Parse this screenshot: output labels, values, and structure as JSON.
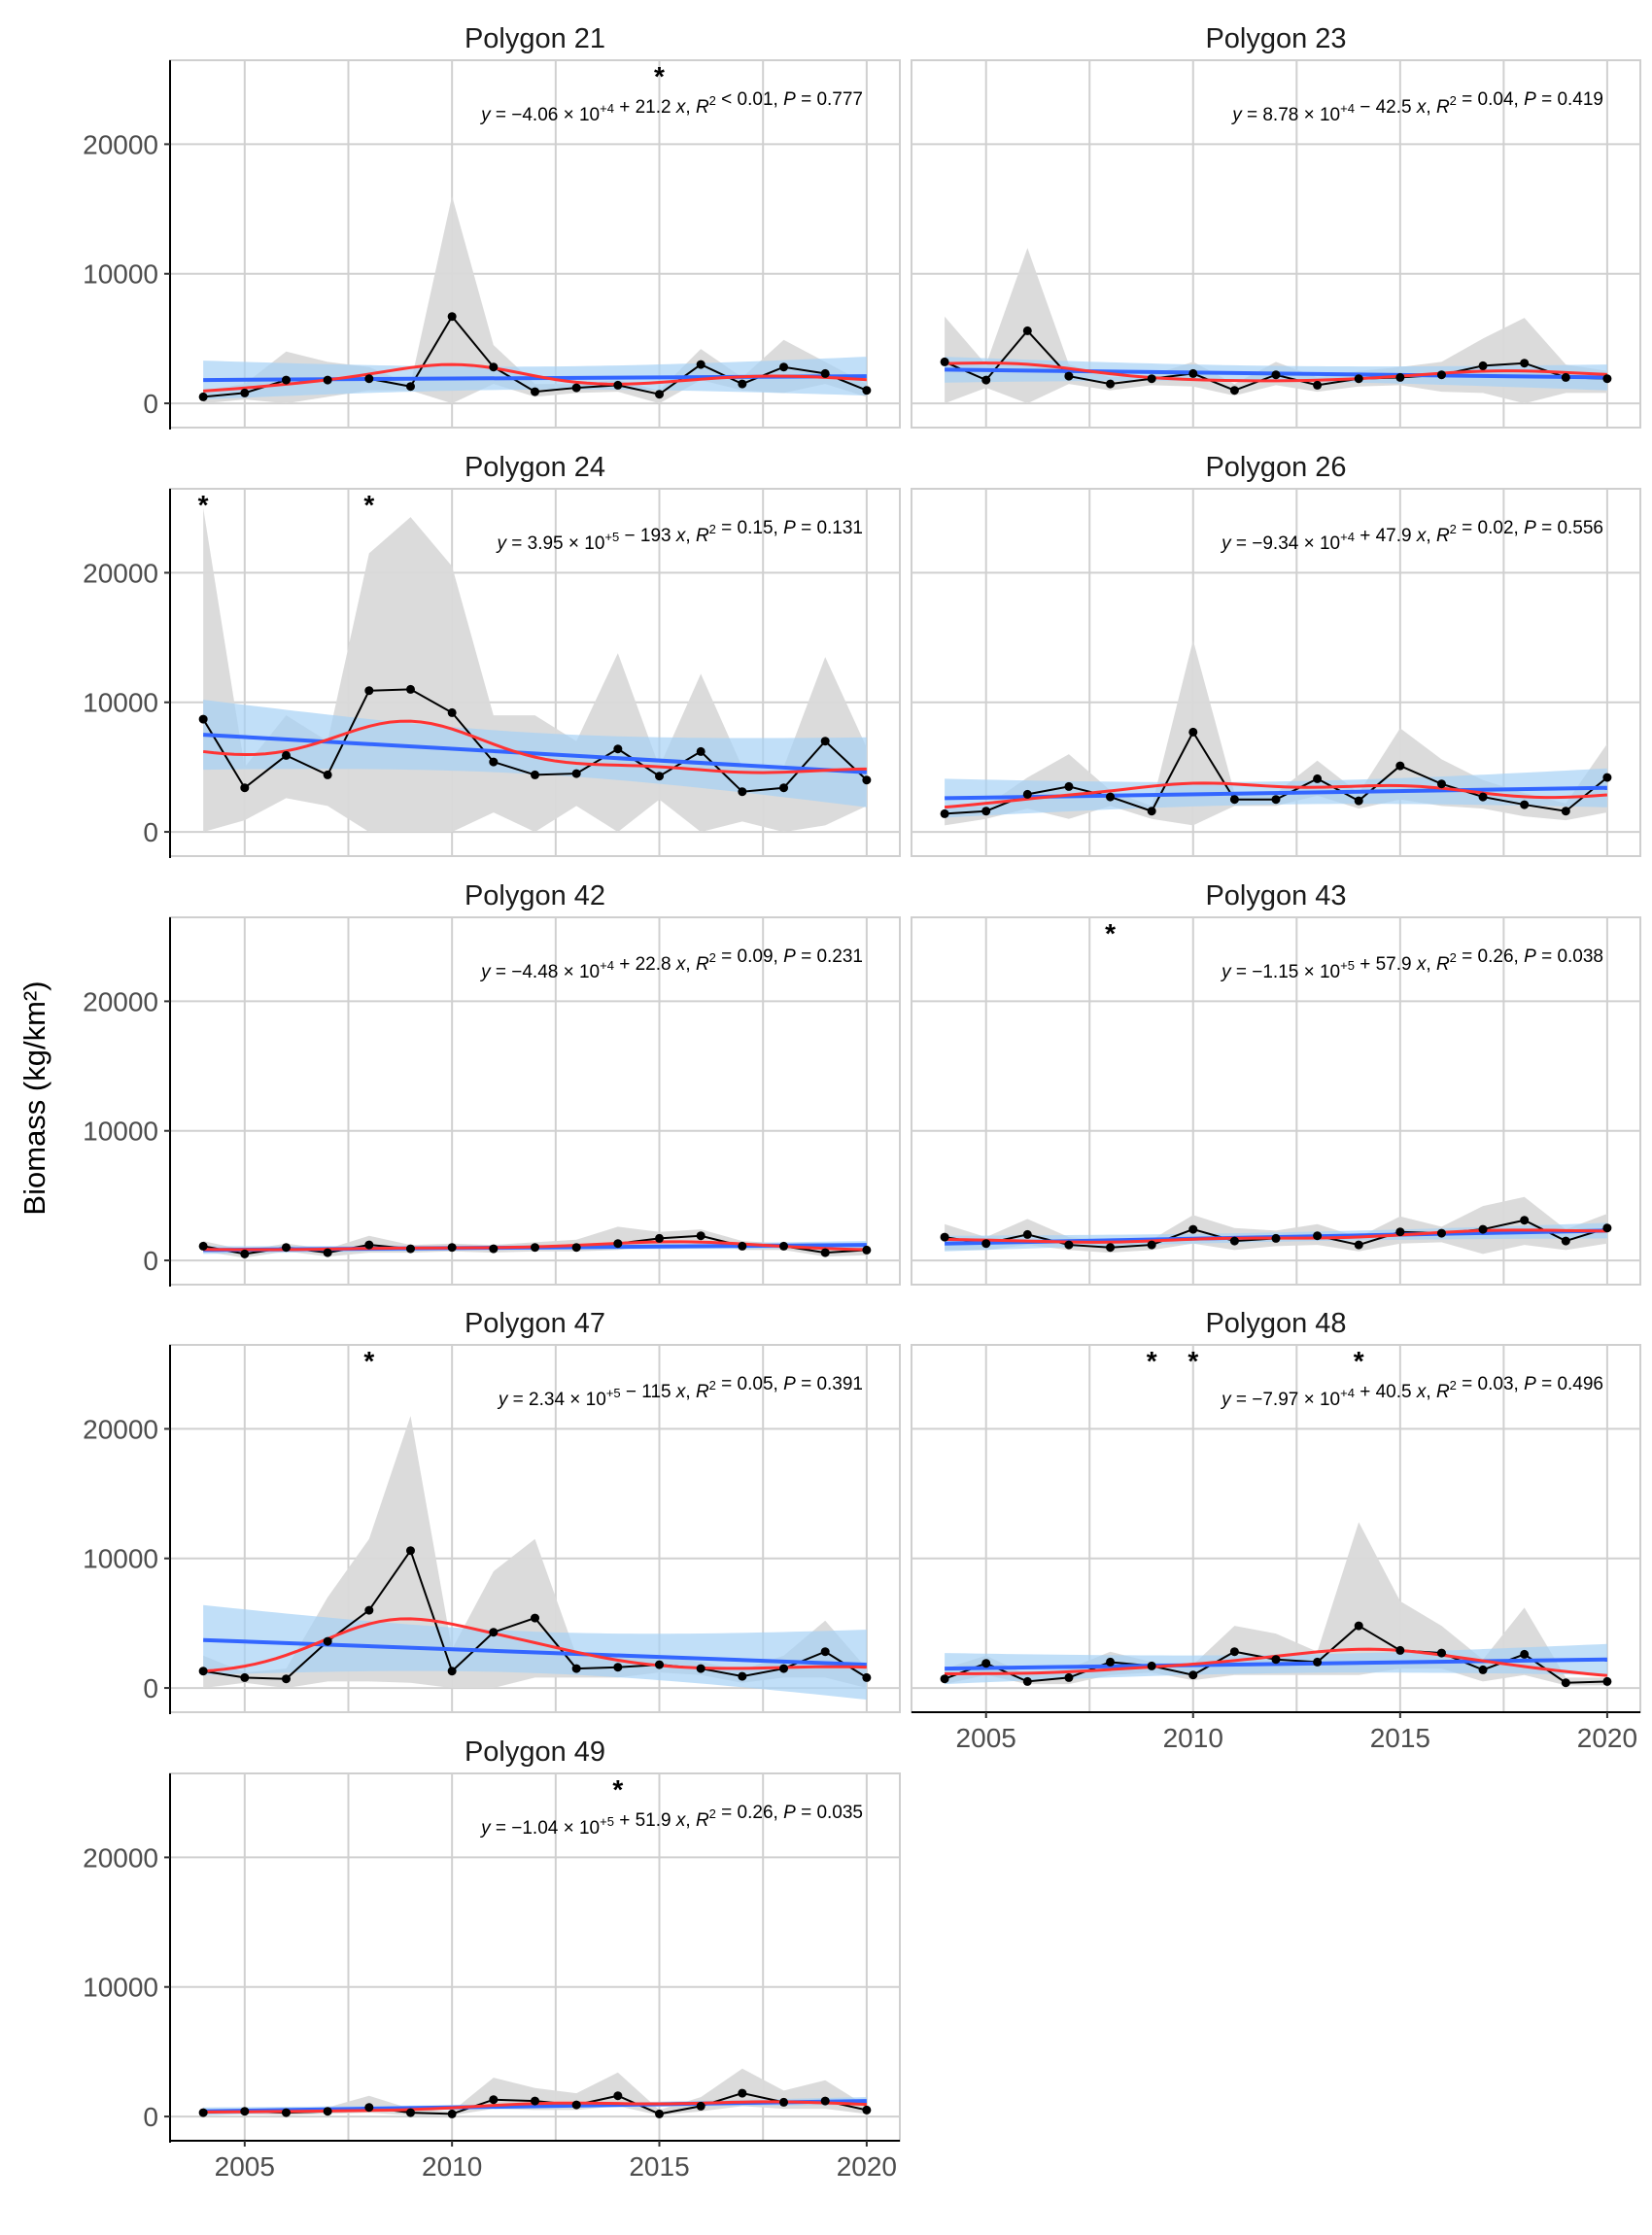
{
  "figure": {
    "y_axis_label": "Biomass (kg/km²)",
    "colors": {
      "observed": "#000000",
      "band": "#d9d9d9",
      "fit_line": "#3366ff",
      "fit_ci": "#a6d2f5",
      "smooth": "#ff3333",
      "grid": "#d0d0d0"
    }
  },
  "chart_data": [
    {
      "type": "line",
      "title": "Polygon 21",
      "x": [
        2004,
        2005,
        2006,
        2007,
        2008,
        2009,
        2010,
        2011,
        2012,
        2013,
        2014,
        2015,
        2016,
        2017,
        2018,
        2019,
        2020
      ],
      "values": [
        500,
        800,
        1800,
        1800,
        1900,
        1300,
        6700,
        2800,
        900,
        1200,
        1400,
        700,
        3000,
        1500,
        2800,
        2300,
        1000
      ],
      "band_upper": [
        1000,
        1500,
        4000,
        3200,
        2800,
        1500,
        16000,
        4500,
        1500,
        1500,
        1800,
        1000,
        4200,
        2000,
        4900,
        3200,
        1500
      ],
      "band_lower": [
        0,
        300,
        0,
        500,
        1000,
        1000,
        0,
        1500,
        500,
        800,
        900,
        0,
        1800,
        1000,
        800,
        1500,
        500
      ],
      "linear_fit": {
        "start": 1800,
        "end": 2100,
        "ci": 1500
      },
      "equation": {
        "a": "−4.06",
        "exp": "+4",
        "b_sign": "+",
        "b": "21.2",
        "r2_op": "<",
        "r2": "0.01",
        "p": "0.777"
      },
      "significance_years": [
        2015
      ],
      "show_x_tick_labels": false,
      "show_y_tick_labels": true
    },
    {
      "type": "line",
      "title": "Polygon 23",
      "x": [
        2004,
        2005,
        2006,
        2007,
        2008,
        2009,
        2010,
        2011,
        2012,
        2013,
        2014,
        2015,
        2016,
        2017,
        2018,
        2019,
        2020
      ],
      "values": [
        3200,
        1800,
        5600,
        2100,
        1500,
        1900,
        2300,
        1000,
        2200,
        1400,
        1900,
        2000,
        2200,
        2900,
        3100,
        2000,
        1900
      ],
      "band_upper": [
        6700,
        3000,
        12000,
        3000,
        2000,
        2200,
        3200,
        1500,
        3200,
        2000,
        2500,
        2800,
        3200,
        5000,
        6600,
        3000,
        2500
      ],
      "band_lower": [
        0,
        1200,
        0,
        1500,
        1000,
        1400,
        1300,
        600,
        1400,
        900,
        1300,
        1400,
        900,
        800,
        0,
        800,
        800
      ],
      "linear_fit": {
        "start": 2600,
        "end": 2000,
        "ci": 1000
      },
      "equation": {
        "a": "8.78",
        "exp": "+4",
        "b_sign": "−",
        "b": "42.5",
        "r2_op": "=",
        "r2": "0.04",
        "p": "0.419"
      },
      "significance_years": [],
      "show_x_tick_labels": false,
      "show_y_tick_labels": false
    },
    {
      "type": "line",
      "title": "Polygon 24",
      "x": [
        2004,
        2005,
        2006,
        2007,
        2008,
        2009,
        2010,
        2011,
        2012,
        2013,
        2014,
        2015,
        2016,
        2017,
        2018,
        2019,
        2020
      ],
      "values": [
        8700,
        3400,
        5900,
        4400,
        10900,
        11000,
        9200,
        5400,
        4400,
        4500,
        6400,
        4300,
        6200,
        3100,
        3400,
        7000,
        4000
      ],
      "band_upper": [
        25000,
        5000,
        9000,
        7000,
        21500,
        24300,
        20500,
        9000,
        9000,
        7000,
        13800,
        5000,
        12200,
        5000,
        5000,
        13500,
        6500
      ],
      "band_lower": [
        0,
        900,
        2600,
        2000,
        0,
        0,
        0,
        1500,
        0,
        2000,
        0,
        2500,
        0,
        800,
        0,
        500,
        2000
      ],
      "linear_fit": {
        "start": 7500,
        "end": 4600,
        "ci": 2700
      },
      "equation": {
        "a": "3.95",
        "exp": "+5",
        "b_sign": "−",
        "b": "193",
        "r2_op": "=",
        "r2": "0.15",
        "p": "0.131"
      },
      "significance_years": [
        2004,
        2008
      ],
      "show_x_tick_labels": false,
      "show_y_tick_labels": true
    },
    {
      "type": "line",
      "title": "Polygon 26",
      "x": [
        2004,
        2005,
        2006,
        2007,
        2008,
        2009,
        2010,
        2011,
        2012,
        2013,
        2014,
        2015,
        2016,
        2017,
        2018,
        2019,
        2020
      ],
      "values": [
        1400,
        1600,
        2900,
        3500,
        2700,
        1600,
        7700,
        2500,
        2500,
        4100,
        2400,
        5100,
        3700,
        2700,
        2100,
        1600,
        4200
      ],
      "band_upper": [
        2000,
        2000,
        4200,
        6000,
        3200,
        2000,
        14800,
        3000,
        3000,
        5500,
        3000,
        8000,
        5600,
        4000,
        3000,
        2200,
        6800
      ],
      "band_lower": [
        500,
        1000,
        1800,
        1000,
        2000,
        1000,
        500,
        2000,
        2000,
        2800,
        1800,
        2500,
        2000,
        1800,
        1200,
        900,
        1500
      ],
      "linear_fit": {
        "start": 2600,
        "end": 3400,
        "ci": 1500
      },
      "equation": {
        "a": "−9.34",
        "exp": "+4",
        "b_sign": "+",
        "b": "47.9",
        "r2_op": "=",
        "r2": "0.02",
        "p": "0.556"
      },
      "significance_years": [],
      "show_x_tick_labels": false,
      "show_y_tick_labels": false
    },
    {
      "type": "line",
      "title": "Polygon 42",
      "x": [
        2004,
        2005,
        2006,
        2007,
        2008,
        2009,
        2010,
        2011,
        2012,
        2013,
        2014,
        2015,
        2016,
        2017,
        2018,
        2019,
        2020
      ],
      "values": [
        1100,
        500,
        1000,
        600,
        1200,
        900,
        1000,
        900,
        1000,
        1000,
        1300,
        1700,
        1900,
        1100,
        1100,
        600,
        800
      ],
      "band_upper": [
        1500,
        800,
        1300,
        900,
        1900,
        1200,
        1300,
        1200,
        1400,
        1600,
        2600,
        2200,
        2400,
        1500,
        1300,
        900,
        1200
      ],
      "band_lower": [
        700,
        200,
        700,
        300,
        600,
        600,
        700,
        600,
        700,
        700,
        800,
        1200,
        1400,
        800,
        800,
        300,
        400
      ],
      "linear_fit": {
        "start": 800,
        "end": 1200,
        "ci": 300
      },
      "equation": {
        "a": "−4.48",
        "exp": "+4",
        "b_sign": "+",
        "b": "22.8",
        "r2_op": "=",
        "r2": "0.09",
        "p": "0.231"
      },
      "significance_years": [],
      "show_x_tick_labels": false,
      "show_y_tick_labels": true
    },
    {
      "type": "line",
      "title": "Polygon 43",
      "x": [
        2004,
        2005,
        2006,
        2007,
        2008,
        2009,
        2010,
        2011,
        2012,
        2013,
        2014,
        2015,
        2016,
        2017,
        2018,
        2019,
        2020
      ],
      "values": [
        1800,
        1300,
        2000,
        1200,
        1000,
        1200,
        2400,
        1500,
        1700,
        1900,
        1200,
        2200,
        2100,
        2400,
        3100,
        1500,
        2500
      ],
      "band_upper": [
        2800,
        1800,
        3200,
        1800,
        1500,
        1600,
        3500,
        2500,
        2300,
        2800,
        1800,
        3400,
        2600,
        4200,
        4900,
        2400,
        3600
      ],
      "band_lower": [
        800,
        800,
        1200,
        800,
        600,
        800,
        1300,
        800,
        1100,
        1200,
        700,
        1300,
        1400,
        500,
        1200,
        800,
        1300
      ],
      "linear_fit": {
        "start": 1300,
        "end": 2300,
        "ci": 600
      },
      "equation": {
        "a": "−1.15",
        "exp": "+5",
        "b_sign": "+",
        "b": "57.9",
        "r2_op": "=",
        "r2": "0.26",
        "p": "0.038"
      },
      "significance_years": [
        2008
      ],
      "show_x_tick_labels": false,
      "show_y_tick_labels": false
    },
    {
      "type": "line",
      "title": "Polygon 47",
      "x": [
        2004,
        2005,
        2006,
        2007,
        2008,
        2009,
        2010,
        2011,
        2012,
        2013,
        2014,
        2015,
        2016,
        2017,
        2018,
        2019,
        2020
      ],
      "values": [
        1300,
        800,
        700,
        3600,
        6000,
        10600,
        1300,
        4300,
        5400,
        1500,
        1600,
        1800,
        1500,
        900,
        1500,
        2800,
        800
      ],
      "band_upper": [
        2500,
        1200,
        1500,
        7000,
        11500,
        21000,
        3000,
        9000,
        11500,
        2500,
        2500,
        2500,
        2000,
        1400,
        2500,
        5200,
        1500
      ],
      "band_lower": [
        0,
        400,
        0,
        500,
        500,
        400,
        0,
        0,
        800,
        800,
        800,
        1200,
        1000,
        400,
        800,
        800,
        0
      ],
      "linear_fit": {
        "start": 3700,
        "end": 1800,
        "ci": 2700
      },
      "equation": {
        "a": "2.34",
        "exp": "+5",
        "b_sign": "−",
        "b": "115",
        "r2_op": "=",
        "r2": "0.05",
        "p": "0.391"
      },
      "significance_years": [
        2008
      ],
      "show_x_tick_labels": false,
      "show_y_tick_labels": true
    },
    {
      "type": "line",
      "title": "Polygon 48",
      "x": [
        2004,
        2005,
        2006,
        2007,
        2008,
        2009,
        2010,
        2011,
        2012,
        2013,
        2014,
        2015,
        2016,
        2017,
        2018,
        2019,
        2020
      ],
      "values": [
        700,
        1900,
        500,
        800,
        2000,
        1700,
        1000,
        2800,
        2200,
        2000,
        4800,
        2900,
        2700,
        1400,
        2600,
        400,
        500
      ],
      "band_upper": [
        1500,
        2500,
        1000,
        1500,
        2800,
        2000,
        1800,
        4800,
        4200,
        2800,
        12800,
        6700,
        4800,
        2200,
        6200,
        800,
        800
      ],
      "band_lower": [
        300,
        1000,
        300,
        300,
        1000,
        1200,
        600,
        1000,
        1000,
        1000,
        1000,
        1500,
        1500,
        500,
        1000,
        200,
        200
      ],
      "linear_fit": {
        "start": 1500,
        "end": 2200,
        "ci": 1200
      },
      "equation": {
        "a": "−7.97",
        "exp": "+4",
        "b_sign": "+",
        "b": "40.5",
        "r2_op": "=",
        "r2": "0.03",
        "p": "0.496"
      },
      "significance_years": [
        2009,
        2010,
        2014
      ],
      "show_x_tick_labels": true,
      "show_y_tick_labels": false
    },
    {
      "type": "line",
      "title": "Polygon 49",
      "x": [
        2004,
        2005,
        2006,
        2007,
        2008,
        2009,
        2010,
        2011,
        2012,
        2013,
        2014,
        2015,
        2016,
        2017,
        2018,
        2019,
        2020
      ],
      "values": [
        300,
        400,
        300,
        400,
        700,
        300,
        200,
        1300,
        1200,
        900,
        1600,
        200,
        800,
        1800,
        1100,
        1200,
        500
      ],
      "band_upper": [
        600,
        600,
        500,
        700,
        1600,
        600,
        400,
        3000,
        2200,
        1800,
        3400,
        500,
        1500,
        3700,
        2000,
        2800,
        800
      ],
      "band_lower": [
        100,
        200,
        100,
        200,
        300,
        100,
        100,
        600,
        500,
        500,
        800,
        100,
        400,
        800,
        600,
        600,
        200
      ],
      "linear_fit": {
        "start": 400,
        "end": 1200,
        "ci": 300
      },
      "equation": {
        "a": "−1.04",
        "exp": "+5",
        "b_sign": "+",
        "b": "51.9",
        "r2_op": "=",
        "r2": "0.26",
        "p": "0.035"
      },
      "significance_years": [
        2014
      ],
      "show_x_tick_labels": true,
      "show_y_tick_labels": true
    }
  ],
  "axes": {
    "xlim": [
      2003.2,
      2020.8
    ],
    "ylim": [
      -1870,
      26480
    ],
    "x_ticks": [
      2005,
      2010,
      2015,
      2020
    ],
    "x_tick_labels": [
      "2005",
      "2010",
      "2015",
      "2020"
    ],
    "y_ticks": [
      0,
      10000,
      20000
    ],
    "y_tick_labels": [
      "0",
      "10000",
      "20000"
    ],
    "grid": true
  }
}
